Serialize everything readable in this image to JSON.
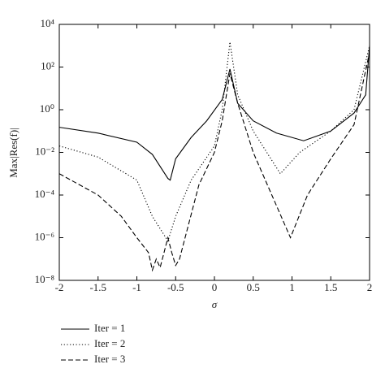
{
  "chart_data": {
    "type": "line",
    "xlabel": "σ",
    "ylabel": "Max|Res(f)|",
    "xlim": [
      -2,
      2
    ],
    "ylim": [
      1e-08,
      10000
    ],
    "log_y": true,
    "xticks": [
      -2,
      -1.5,
      -1,
      -0.5,
      0,
      0.5,
      1,
      1.5,
      2
    ],
    "yticks": [
      {
        "value": 1e-08,
        "label": "10⁻⁸"
      },
      {
        "value": 1e-06,
        "label": "10⁻⁶"
      },
      {
        "value": 0.0001,
        "label": "10⁻⁴"
      },
      {
        "value": 0.01,
        "label": "10⁻²"
      },
      {
        "value": 1,
        "label": "10⁰"
      },
      {
        "value": 100,
        "label": "10²"
      },
      {
        "value": 10000,
        "label": "10⁴"
      }
    ],
    "legend": "lower-left-outside",
    "series": [
      {
        "name": "Iter = 1",
        "color": "#000000",
        "dash": "solid",
        "x": [
          -2,
          -1.5,
          -1,
          -0.8,
          -0.6,
          -0.57,
          -0.5,
          -0.3,
          -0.1,
          0.1,
          0.2,
          0.3,
          0.5,
          0.8,
          1.15,
          1.5,
          1.8,
          1.95,
          2
        ],
        "values": [
          0.15,
          0.08,
          0.03,
          0.008,
          0.0006,
          0.0005,
          0.005,
          0.05,
          0.3,
          3,
          80,
          2,
          0.3,
          0.08,
          0.035,
          0.1,
          0.7,
          5,
          1000
        ]
      },
      {
        "name": "Iter = 2",
        "color": "#000000",
        "dash": "dotted",
        "x": [
          -2,
          -1.5,
          -1,
          -0.8,
          -0.6,
          -0.5,
          -0.3,
          0,
          0.1,
          0.2,
          0.3,
          0.5,
          0.85,
          1.1,
          1.5,
          1.8,
          2
        ],
        "values": [
          0.02,
          0.006,
          0.0005,
          1e-05,
          7e-07,
          1e-05,
          0.0005,
          0.02,
          1,
          1500,
          5,
          0.1,
          0.001,
          0.01,
          0.1,
          1,
          1000
        ]
      },
      {
        "name": "Iter = 3",
        "color": "#000000",
        "dash": "dashed",
        "x": [
          -2,
          -1.5,
          -1.2,
          -1,
          -0.85,
          -0.8,
          -0.75,
          -0.7,
          -0.65,
          -0.6,
          -0.55,
          -0.5,
          -0.45,
          -0.4,
          -0.2,
          0,
          0.1,
          0.2,
          0.3,
          0.5,
          0.98,
          1.2,
          1.5,
          1.8,
          2
        ],
        "values": [
          0.001,
          0.0001,
          1e-05,
          1e-06,
          2e-07,
          3e-08,
          1e-07,
          4e-08,
          2e-07,
          1e-06,
          2e-07,
          5e-08,
          1e-07,
          5e-07,
          0.0003,
          0.01,
          0.3,
          50,
          2,
          0.01,
          1e-06,
          0.0001,
          0.005,
          0.2,
          500
        ]
      }
    ]
  }
}
